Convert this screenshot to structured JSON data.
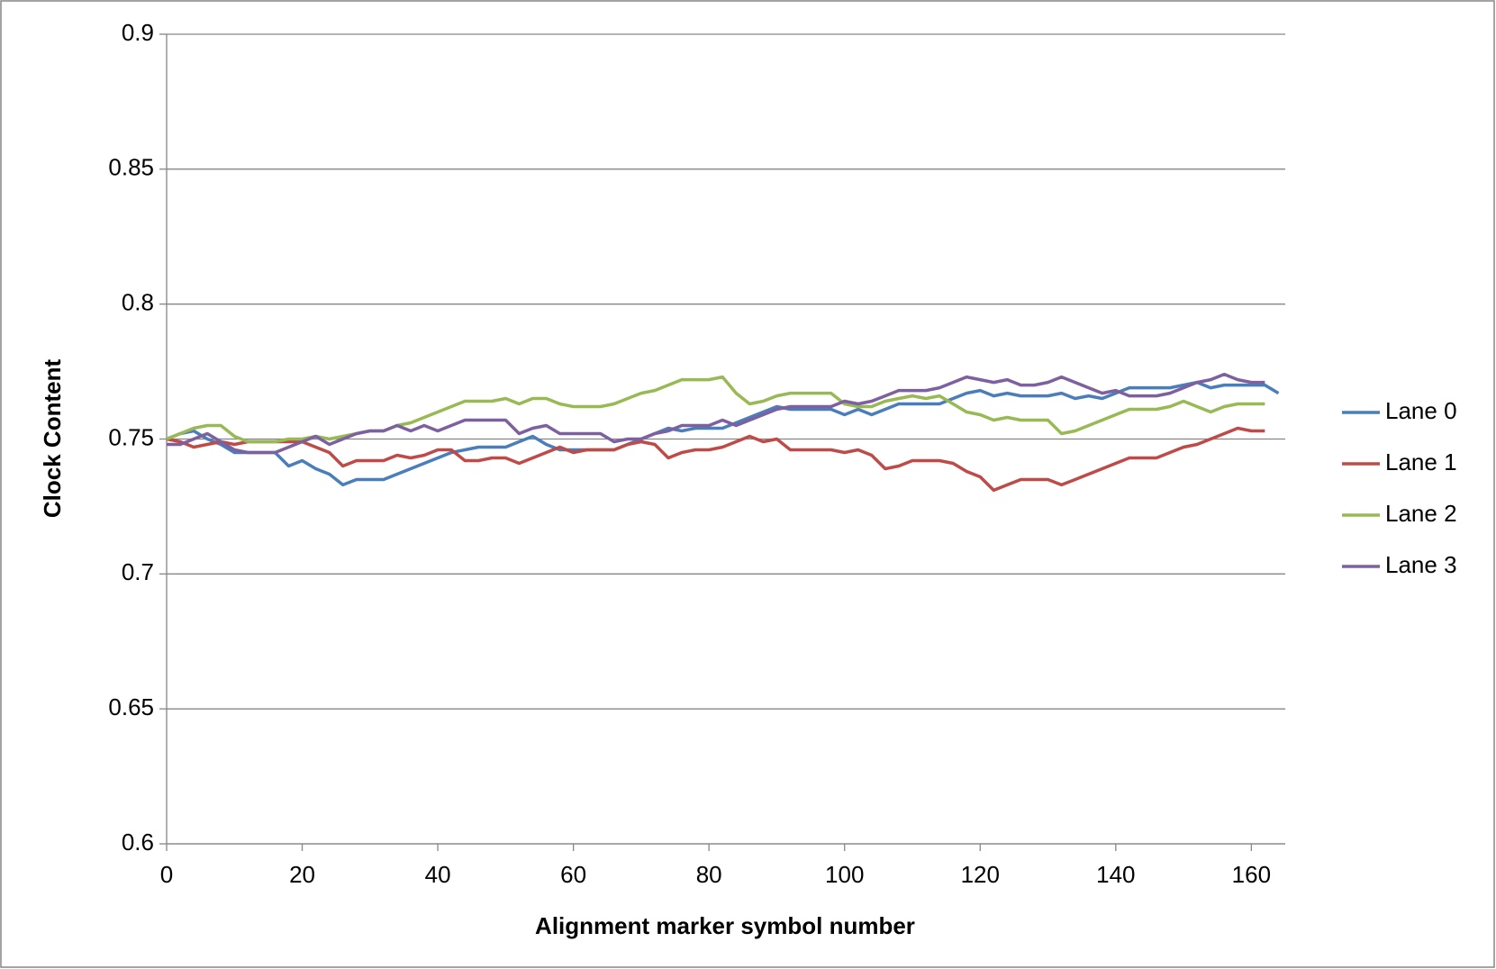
{
  "chart_data": {
    "type": "line",
    "x_label": "Alignment marker symbol number",
    "y_label": "Clock Content",
    "x": [
      0,
      2,
      4,
      6,
      8,
      10,
      12,
      14,
      16,
      18,
      20,
      22,
      24,
      26,
      28,
      30,
      32,
      34,
      36,
      38,
      40,
      42,
      44,
      46,
      48,
      50,
      52,
      54,
      56,
      58,
      60,
      62,
      64,
      66,
      68,
      70,
      72,
      74,
      76,
      78,
      80,
      82,
      84,
      86,
      88,
      90,
      92,
      94,
      96,
      98,
      100,
      102,
      104,
      106,
      108,
      110,
      112,
      114,
      116,
      118,
      120,
      122,
      124,
      126,
      128,
      130,
      132,
      134,
      136,
      138,
      140,
      142,
      144,
      146,
      148,
      150,
      152,
      154,
      156,
      158,
      160,
      162,
      164
    ],
    "series": [
      {
        "name": "Lane 0",
        "color": "#4a7ebb",
        "values": [
          0.75,
          0.752,
          0.753,
          0.75,
          0.748,
          0.745,
          0.745,
          0.745,
          0.745,
          0.74,
          0.742,
          0.739,
          0.737,
          0.733,
          0.735,
          0.735,
          0.735,
          0.737,
          0.739,
          0.741,
          0.743,
          0.745,
          0.746,
          0.747,
          0.747,
          0.747,
          0.749,
          0.751,
          0.748,
          0.746,
          0.746,
          0.746,
          0.746,
          0.746,
          0.748,
          0.75,
          0.752,
          0.754,
          0.753,
          0.754,
          0.754,
          0.754,
          0.756,
          0.758,
          0.76,
          0.762,
          0.761,
          0.761,
          0.761,
          0.761,
          0.759,
          0.761,
          0.759,
          0.761,
          0.763,
          0.763,
          0.763,
          0.763,
          0.765,
          0.767,
          0.768,
          0.766,
          0.767,
          0.766,
          0.766,
          0.766,
          0.767,
          0.765,
          0.766,
          0.765,
          0.767,
          0.769,
          0.769,
          0.769,
          0.769,
          0.77,
          0.771,
          0.769,
          0.77,
          0.77,
          0.77,
          0.77,
          0.767
        ]
      },
      {
        "name": "Lane 1",
        "color": "#be4b48",
        "values": [
          0.75,
          0.749,
          0.747,
          0.748,
          0.749,
          0.748,
          0.749,
          0.749,
          0.749,
          0.749,
          0.749,
          0.747,
          0.745,
          0.74,
          0.742,
          0.742,
          0.742,
          0.744,
          0.743,
          0.744,
          0.746,
          0.746,
          0.742,
          0.742,
          0.743,
          0.743,
          0.741,
          0.743,
          0.745,
          0.747,
          0.745,
          0.746,
          0.746,
          0.746,
          0.748,
          0.749,
          0.748,
          0.743,
          0.745,
          0.746,
          0.746,
          0.747,
          0.749,
          0.751,
          0.749,
          0.75,
          0.746,
          0.746,
          0.746,
          0.746,
          0.745,
          0.746,
          0.744,
          0.739,
          0.74,
          0.742,
          0.742,
          0.742,
          0.741,
          0.738,
          0.736,
          0.731,
          0.733,
          0.735,
          0.735,
          0.735,
          0.733,
          0.735,
          0.737,
          0.739,
          0.741,
          0.743,
          0.743,
          0.743,
          0.745,
          0.747,
          0.748,
          0.75,
          0.752,
          0.754,
          0.753,
          0.753,
          null
        ]
      },
      {
        "name": "Lane 2",
        "color": "#98b954",
        "values": [
          0.75,
          0.752,
          0.754,
          0.755,
          0.755,
          0.751,
          0.749,
          0.749,
          0.749,
          0.75,
          0.75,
          0.751,
          0.75,
          0.751,
          0.752,
          0.753,
          0.753,
          0.755,
          0.756,
          0.758,
          0.76,
          0.762,
          0.764,
          0.764,
          0.764,
          0.765,
          0.763,
          0.765,
          0.765,
          0.763,
          0.762,
          0.762,
          0.762,
          0.763,
          0.765,
          0.767,
          0.768,
          0.77,
          0.772,
          0.772,
          0.772,
          0.773,
          0.767,
          0.763,
          0.764,
          0.766,
          0.767,
          0.767,
          0.767,
          0.767,
          0.763,
          0.762,
          0.762,
          0.764,
          0.765,
          0.766,
          0.765,
          0.766,
          0.763,
          0.76,
          0.759,
          0.757,
          0.758,
          0.757,
          0.757,
          0.757,
          0.752,
          0.753,
          0.755,
          0.757,
          0.759,
          0.761,
          0.761,
          0.761,
          0.762,
          0.764,
          0.762,
          0.76,
          0.762,
          0.763,
          0.763,
          0.763,
          null
        ]
      },
      {
        "name": "Lane 3",
        "color": "#7d60a0",
        "values": [
          0.748,
          0.748,
          0.75,
          0.752,
          0.749,
          0.746,
          0.745,
          0.745,
          0.745,
          0.747,
          0.749,
          0.751,
          0.748,
          0.75,
          0.752,
          0.753,
          0.753,
          0.755,
          0.753,
          0.755,
          0.753,
          0.755,
          0.757,
          0.757,
          0.757,
          0.757,
          0.752,
          0.754,
          0.755,
          0.752,
          0.752,
          0.752,
          0.752,
          0.749,
          0.75,
          0.75,
          0.752,
          0.753,
          0.755,
          0.755,
          0.755,
          0.757,
          0.755,
          0.757,
          0.759,
          0.761,
          0.762,
          0.762,
          0.762,
          0.762,
          0.764,
          0.763,
          0.764,
          0.766,
          0.768,
          0.768,
          0.768,
          0.769,
          0.771,
          0.773,
          0.772,
          0.771,
          0.772,
          0.77,
          0.77,
          0.771,
          0.773,
          0.771,
          0.769,
          0.767,
          0.768,
          0.766,
          0.766,
          0.766,
          0.767,
          0.769,
          0.771,
          0.772,
          0.774,
          0.772,
          0.771,
          0.771,
          null
        ]
      }
    ],
    "xlim": [
      0,
      165
    ],
    "xticks": [
      0,
      20,
      40,
      60,
      80,
      100,
      120,
      140,
      160
    ],
    "ylim": [
      0.6,
      0.9
    ],
    "yticks": [
      0.6,
      0.65,
      0.7,
      0.75,
      0.8,
      0.85,
      0.9
    ],
    "grid": true,
    "legend": "right"
  }
}
